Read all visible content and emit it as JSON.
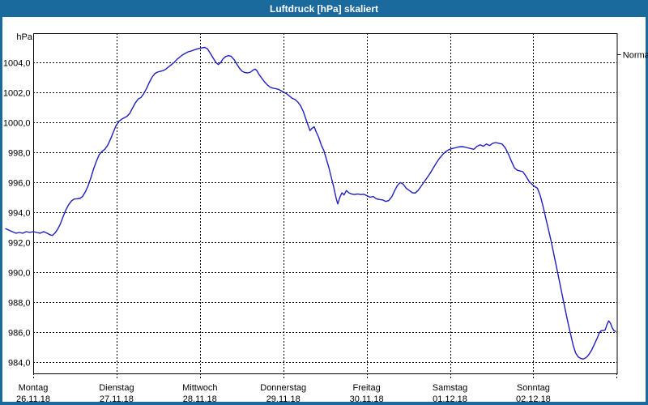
{
  "window": {
    "title": "Luftdruck [hPa] skaliert"
  },
  "colors": {
    "titlebar": "#1a6a9e",
    "window_border": "#1a6a9e",
    "background": "#ffffff",
    "grid": "#000000",
    "line": "#1f1fc1",
    "text": "#000000"
  },
  "chart_data": {
    "type": "line",
    "title": "Luftdruck [hPa] skaliert",
    "ylabel": "hPa",
    "grid": "dashed",
    "y_axis": {
      "min": 984.0,
      "max": 1004.0,
      "step": 2.0,
      "tick_labels": [
        "1004,0",
        "1002,0",
        "1000,0",
        "998,0",
        "996,0",
        "994,0",
        "992,0",
        "990,0",
        "988,0",
        "986,0",
        "984,0"
      ]
    },
    "x_axis": {
      "unit": "days",
      "days": [
        {
          "weekday": "Montag",
          "date": "26.11.18"
        },
        {
          "weekday": "Dienstag",
          "date": "27.11.18"
        },
        {
          "weekday": "Mittwoch",
          "date": "28.11.18"
        },
        {
          "weekday": "Donnerstag",
          "date": "29.11.18"
        },
        {
          "weekday": "Freitag",
          "date": "30.11.18"
        },
        {
          "weekday": "Samstag",
          "date": "01.12.18"
        },
        {
          "weekday": "Sonntag",
          "date": "02.12.18"
        }
      ]
    },
    "right_annotation": {
      "label": "Normal"
    },
    "series": [
      {
        "name": "Luftdruck",
        "unit": "hPa",
        "points_format": "[hours_since_monday_00, hPa]",
        "points": [
          [
            -7.9,
            992.9
          ],
          [
            -6.5,
            992.75
          ],
          [
            -5,
            992.6
          ],
          [
            -4,
            992.65
          ],
          [
            -3,
            992.6
          ],
          [
            -2,
            992.7
          ],
          [
            -1,
            992.65
          ],
          [
            0,
            992.7
          ],
          [
            1,
            992.65
          ],
          [
            2,
            992.6
          ],
          [
            3,
            992.7
          ],
          [
            4,
            992.6
          ],
          [
            4.8,
            992.5
          ],
          [
            5.5,
            992.45
          ],
          [
            6.2,
            992.6
          ],
          [
            7,
            992.85
          ],
          [
            7.8,
            993.2
          ],
          [
            8.6,
            993.7
          ],
          [
            9.4,
            994.15
          ],
          [
            10.2,
            994.5
          ],
          [
            11,
            994.75
          ],
          [
            11.8,
            994.88
          ],
          [
            12.6,
            994.9
          ],
          [
            13.4,
            994.92
          ],
          [
            14.2,
            995.05
          ],
          [
            15,
            995.35
          ],
          [
            15.8,
            995.75
          ],
          [
            16.6,
            996.3
          ],
          [
            17.4,
            996.9
          ],
          [
            18.2,
            997.4
          ],
          [
            19,
            997.85
          ],
          [
            19.8,
            998.05
          ],
          [
            20.6,
            998.2
          ],
          [
            21.4,
            998.45
          ],
          [
            22.2,
            998.85
          ],
          [
            23,
            999.3
          ],
          [
            23.8,
            999.75
          ],
          [
            24.6,
            1000.05
          ],
          [
            25.4,
            1000.2
          ],
          [
            26.2,
            1000.3
          ],
          [
            27,
            1000.4
          ],
          [
            27.8,
            1000.6
          ],
          [
            28.6,
            1000.95
          ],
          [
            29.4,
            1001.3
          ],
          [
            30.2,
            1001.55
          ],
          [
            31,
            1001.65
          ],
          [
            31.8,
            1001.9
          ],
          [
            32.6,
            1002.25
          ],
          [
            33.4,
            1002.65
          ],
          [
            34.2,
            1003.0
          ],
          [
            35,
            1003.25
          ],
          [
            35.8,
            1003.35
          ],
          [
            36.6,
            1003.4
          ],
          [
            37.4,
            1003.45
          ],
          [
            38.2,
            1003.55
          ],
          [
            39,
            1003.7
          ],
          [
            39.8,
            1003.85
          ],
          [
            40.6,
            1004.0
          ],
          [
            41.4,
            1004.2
          ],
          [
            42.2,
            1004.35
          ],
          [
            43,
            1004.5
          ],
          [
            43.8,
            1004.6
          ],
          [
            44.6,
            1004.7
          ],
          [
            45.4,
            1004.75
          ],
          [
            46.2,
            1004.82
          ],
          [
            47,
            1004.88
          ],
          [
            47.8,
            1004.93
          ],
          [
            48.6,
            1004.97
          ],
          [
            49.4,
            1005.0
          ],
          [
            50.2,
            1004.9
          ],
          [
            51,
            1004.6
          ],
          [
            51.8,
            1004.3
          ],
          [
            52.6,
            1004.0
          ],
          [
            53.3,
            1003.85
          ],
          [
            54,
            1004.0
          ],
          [
            54.7,
            1004.25
          ],
          [
            55.5,
            1004.4
          ],
          [
            56.3,
            1004.45
          ],
          [
            57,
            1004.4
          ],
          [
            57.8,
            1004.2
          ],
          [
            58.6,
            1003.9
          ],
          [
            59.4,
            1003.6
          ],
          [
            60.2,
            1003.4
          ],
          [
            61,
            1003.32
          ],
          [
            61.8,
            1003.3
          ],
          [
            62.6,
            1003.35
          ],
          [
            63.4,
            1003.5
          ],
          [
            63.9,
            1003.55
          ],
          [
            64.4,
            1003.45
          ],
          [
            65,
            1003.2
          ],
          [
            65.8,
            1002.95
          ],
          [
            66.6,
            1002.7
          ],
          [
            67.4,
            1002.5
          ],
          [
            68.2,
            1002.35
          ],
          [
            69,
            1002.28
          ],
          [
            69.8,
            1002.25
          ],
          [
            70.6,
            1002.2
          ],
          [
            71.4,
            1002.1
          ],
          [
            72.2,
            1002.0
          ],
          [
            73,
            1001.9
          ],
          [
            73.8,
            1001.75
          ],
          [
            74.6,
            1001.6
          ],
          [
            75.4,
            1001.52
          ],
          [
            76.2,
            1001.35
          ],
          [
            77,
            1001.1
          ],
          [
            77.8,
            1000.7
          ],
          [
            78.4,
            1000.3
          ],
          [
            79,
            999.9
          ],
          [
            79.7,
            999.45
          ],
          [
            80.3,
            999.6
          ],
          [
            80.9,
            999.7
          ],
          [
            81.5,
            999.35
          ],
          [
            82.2,
            999.0
          ],
          [
            83,
            998.45
          ],
          [
            83.7,
            998.1
          ],
          [
            84.4,
            997.55
          ],
          [
            85.1,
            997.0
          ],
          [
            85.8,
            996.35
          ],
          [
            86.5,
            995.7
          ],
          [
            87.2,
            994.95
          ],
          [
            87.7,
            994.55
          ],
          [
            88.3,
            995.0
          ],
          [
            88.9,
            995.3
          ],
          [
            89.5,
            995.15
          ],
          [
            90.2,
            995.45
          ],
          [
            90.9,
            995.3
          ],
          [
            91.6,
            995.22
          ],
          [
            92.5,
            995.18
          ],
          [
            93.4,
            995.22
          ],
          [
            94.3,
            995.18
          ],
          [
            95.2,
            995.2
          ],
          [
            96.1,
            995.1
          ],
          [
            97,
            995.0
          ],
          [
            97.9,
            995.05
          ],
          [
            98.8,
            994.9
          ],
          [
            99.7,
            994.85
          ],
          [
            100.6,
            994.82
          ],
          [
            101.5,
            994.72
          ],
          [
            102.4,
            994.78
          ],
          [
            103.3,
            995.05
          ],
          [
            104.1,
            995.45
          ],
          [
            104.9,
            995.8
          ],
          [
            105.7,
            995.98
          ],
          [
            106.5,
            995.88
          ],
          [
            107.4,
            995.6
          ],
          [
            108.3,
            995.45
          ],
          [
            109.2,
            995.3
          ],
          [
            110,
            995.28
          ],
          [
            110.8,
            995.45
          ],
          [
            111.6,
            995.7
          ],
          [
            112.5,
            996.0
          ],
          [
            113.4,
            996.3
          ],
          [
            114.3,
            996.6
          ],
          [
            115.2,
            996.95
          ],
          [
            116.1,
            997.3
          ],
          [
            117,
            997.6
          ],
          [
            117.9,
            997.85
          ],
          [
            118.8,
            998.05
          ],
          [
            119.7,
            998.18
          ],
          [
            120.6,
            998.25
          ],
          [
            121.5,
            998.3
          ],
          [
            122.4,
            998.35
          ],
          [
            123.3,
            998.38
          ],
          [
            124.2,
            998.35
          ],
          [
            125.1,
            998.3
          ],
          [
            126,
            998.25
          ],
          [
            126.9,
            998.2
          ],
          [
            127.8,
            998.4
          ],
          [
            128.7,
            998.5
          ],
          [
            129.6,
            998.4
          ],
          [
            130.5,
            998.55
          ],
          [
            131.4,
            998.45
          ],
          [
            132.3,
            998.6
          ],
          [
            133.2,
            998.65
          ],
          [
            134.1,
            998.6
          ],
          [
            135,
            998.55
          ],
          [
            135.9,
            998.3
          ],
          [
            136.8,
            997.9
          ],
          [
            137.7,
            997.4
          ],
          [
            138.6,
            996.95
          ],
          [
            139.4,
            996.8
          ],
          [
            140.2,
            996.75
          ],
          [
            141,
            996.7
          ],
          [
            141.9,
            996.4
          ],
          [
            142.8,
            996.05
          ],
          [
            143.7,
            995.85
          ],
          [
            144.5,
            995.7
          ],
          [
            145.2,
            995.6
          ],
          [
            146,
            995.1
          ],
          [
            146.8,
            994.4
          ],
          [
            147.6,
            993.6
          ],
          [
            148.4,
            992.8
          ],
          [
            149.2,
            992.0
          ],
          [
            150,
            991.1
          ],
          [
            150.8,
            990.2
          ],
          [
            151.6,
            989.3
          ],
          [
            152.4,
            988.4
          ],
          [
            153.2,
            987.5
          ],
          [
            154,
            986.6
          ],
          [
            154.8,
            985.8
          ],
          [
            155.5,
            985.1
          ],
          [
            156.2,
            984.6
          ],
          [
            156.9,
            984.35
          ],
          [
            157.6,
            984.25
          ],
          [
            158.4,
            984.2
          ],
          [
            159.2,
            984.3
          ],
          [
            160,
            984.5
          ],
          [
            160.8,
            984.8
          ],
          [
            161.6,
            985.2
          ],
          [
            162.4,
            985.6
          ],
          [
            163,
            985.95
          ],
          [
            163.6,
            986.1
          ],
          [
            164.2,
            986.1
          ],
          [
            164.7,
            986.15
          ],
          [
            165.2,
            986.5
          ],
          [
            165.7,
            986.75
          ],
          [
            166.2,
            986.6
          ],
          [
            166.7,
            986.3
          ],
          [
            167.2,
            986.1
          ],
          [
            167.7,
            986.05
          ]
        ]
      }
    ]
  }
}
